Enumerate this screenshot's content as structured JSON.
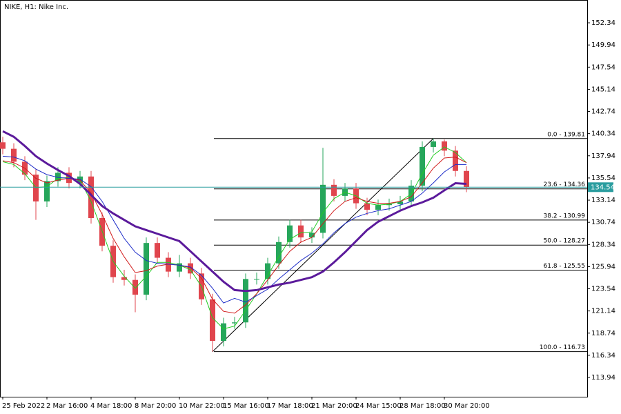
{
  "chart_data": {
    "type": "candlestick",
    "title": "NIKE, H1:  Nike Inc.",
    "up_color": "#26a65b",
    "down_color": "#e0454d",
    "open": [
      139.4,
      138.7,
      137.3,
      135.9,
      133.0,
      135.2,
      136.1,
      135.0,
      135.7,
      131.2,
      128.2,
      124.8,
      124.5,
      122.9,
      128.5,
      126.9,
      125.4,
      126.3,
      125.2,
      122.4,
      117.9,
      119.8,
      119.9,
      124.6,
      124.6,
      126.3,
      128.6,
      130.4,
      129.1,
      129.6,
      134.8,
      133.6,
      134.4,
      132.8,
      132.1,
      132.6,
      132.7,
      133.0,
      134.7,
      138.9,
      139.5,
      138.5,
      136.3
    ],
    "high": [
      140.0,
      139.3,
      137.9,
      136.5,
      135.8,
      136.7,
      136.7,
      136.3,
      136.3,
      131.8,
      128.8,
      125.6,
      125.1,
      129.1,
      129.1,
      127.5,
      127.2,
      126.9,
      125.8,
      123.0,
      120.4,
      120.5,
      125.2,
      125.3,
      126.9,
      129.2,
      131.0,
      131.0,
      130.2,
      138.8,
      135.4,
      135.0,
      135.0,
      133.4,
      133.2,
      133.3,
      133.6,
      135.3,
      139.5,
      139.81,
      139.7,
      139.0,
      136.8
    ],
    "low": [
      138.1,
      136.7,
      135.3,
      131.0,
      132.4,
      134.6,
      134.4,
      134.4,
      130.6,
      127.6,
      124.2,
      123.9,
      121.0,
      122.3,
      126.3,
      124.8,
      124.8,
      124.6,
      121.8,
      116.73,
      117.3,
      119.2,
      119.3,
      124.0,
      124.0,
      125.7,
      128.0,
      128.5,
      128.5,
      129.0,
      133.0,
      133.0,
      132.2,
      131.5,
      131.5,
      132.0,
      132.1,
      132.4,
      134.1,
      138.3,
      137.9,
      135.7,
      134.0
    ],
    "close": [
      138.7,
      137.3,
      135.9,
      133.0,
      135.2,
      136.1,
      135.0,
      135.7,
      131.2,
      128.2,
      124.8,
      124.5,
      122.9,
      128.5,
      126.9,
      125.4,
      126.3,
      125.2,
      122.4,
      117.9,
      119.8,
      119.9,
      124.6,
      124.6,
      126.3,
      128.6,
      130.4,
      129.1,
      129.6,
      134.8,
      133.6,
      134.4,
      132.8,
      132.1,
      132.6,
      132.7,
      133.0,
      134.7,
      138.9,
      139.5,
      138.5,
      136.3,
      134.54
    ],
    "lines": [
      {
        "color": "#22cc22",
        "width": 1,
        "values": [
          137.3,
          137.0,
          136.0,
          134.5,
          134.6,
          135.5,
          135.6,
          135.3,
          133.0,
          129.8,
          126.5,
          124.9,
          123.6,
          124.9,
          126.4,
          126.4,
          126.1,
          125.6,
          123.8,
          120.4,
          119.2,
          119.5,
          121.2,
          123.0,
          125.0,
          127.0,
          128.9,
          129.6,
          129.7,
          131.8,
          133.3,
          134.0,
          133.6,
          132.8,
          132.6,
          132.7,
          133.0,
          133.8,
          136.0,
          138.0,
          138.9,
          138.3,
          137.2
        ]
      },
      {
        "color": "#d11a1a",
        "width": 1,
        "values": [
          137.4,
          137.2,
          136.6,
          135.5,
          135.0,
          135.3,
          135.5,
          135.3,
          133.9,
          131.6,
          129.0,
          127.0,
          125.3,
          125.5,
          126.0,
          126.2,
          126.1,
          125.8,
          124.7,
          122.4,
          121.1,
          120.9,
          121.8,
          123.0,
          124.5,
          126.1,
          127.6,
          128.6,
          129.1,
          130.6,
          132.0,
          133.0,
          133.4,
          133.0,
          132.8,
          132.8,
          133.0,
          133.5,
          135.0,
          136.6,
          137.7,
          137.8,
          137.2
        ]
      },
      {
        "color": "#1f2ec9",
        "width": 1,
        "values": [
          137.9,
          137.8,
          137.4,
          136.5,
          135.9,
          135.6,
          135.5,
          135.4,
          134.6,
          133.0,
          131.0,
          129.0,
          127.5,
          126.6,
          126.3,
          126.2,
          126.1,
          125.9,
          125.0,
          123.6,
          122.0,
          122.5,
          122.1,
          122.8,
          123.5,
          124.6,
          125.6,
          126.6,
          127.4,
          128.4,
          129.6,
          130.6,
          131.3,
          131.7,
          132.0,
          132.2,
          132.6,
          133.0,
          133.9,
          135.0,
          136.2,
          137.0,
          137.0
        ]
      },
      {
        "color": "#5b1a9b",
        "width": 3,
        "values": [
          140.6,
          140.0,
          139.0,
          137.9,
          137.1,
          136.4,
          135.75,
          134.9,
          133.7,
          132.5,
          131.7,
          131.0,
          130.3,
          129.9,
          129.5,
          129.1,
          128.7,
          127.6,
          126.5,
          125.4,
          124.3,
          123.4,
          123.3,
          123.4,
          123.7,
          124.0,
          124.2,
          124.5,
          124.8,
          125.4,
          126.4,
          127.5,
          128.7,
          129.9,
          130.8,
          131.4,
          132.0,
          132.5,
          132.9,
          133.4,
          134.2,
          134.97,
          134.9
        ]
      }
    ],
    "fib": {
      "color": "#000000",
      "levels": [
        {
          "value": 139.81,
          "label": "0.0 - 139.81"
        },
        {
          "value": 134.36,
          "label": "23.6 - 134.36"
        },
        {
          "value": 130.99,
          "label": "38.2 - 130.99"
        },
        {
          "value": 128.27,
          "label": "50.0 - 128.27"
        },
        {
          "value": 125.55,
          "label": "61.8 - 125.55"
        },
        {
          "value": 116.73,
          "label": "100.0 - 116.73"
        }
      ]
    },
    "last_price": 134.54,
    "last_price_color": "#2a9d9f",
    "ylim": [
      111.85,
      154.81
    ],
    "yticks": [
      152.34,
      149.94,
      147.54,
      145.14,
      142.74,
      140.34,
      137.94,
      135.54,
      133.14,
      130.74,
      128.34,
      125.94,
      123.54,
      121.14,
      118.74,
      116.34,
      113.94
    ],
    "xticks": [
      {
        "value": 0,
        "label": "25 Feb 2022"
      },
      {
        "value": 4,
        "label": "2 Mar 16:00"
      },
      {
        "value": 8,
        "label": "4 Mar 18:00"
      },
      {
        "value": 12,
        "label": "8 Mar 20:00"
      },
      {
        "value": 16,
        "label": "10 Mar 22:00"
      },
      {
        "value": 20,
        "label": "15 Mar 16:00"
      },
      {
        "value": 24,
        "label": "17 Mar 18:00"
      },
      {
        "value": 28,
        "label": "21 Mar 20:00"
      },
      {
        "value": 32,
        "label": "24 Mar 15:00"
      },
      {
        "value": 36,
        "label": "28 Mar 18:00"
      },
      {
        "value": 40,
        "label": "30 Mar 20:00"
      }
    ]
  }
}
